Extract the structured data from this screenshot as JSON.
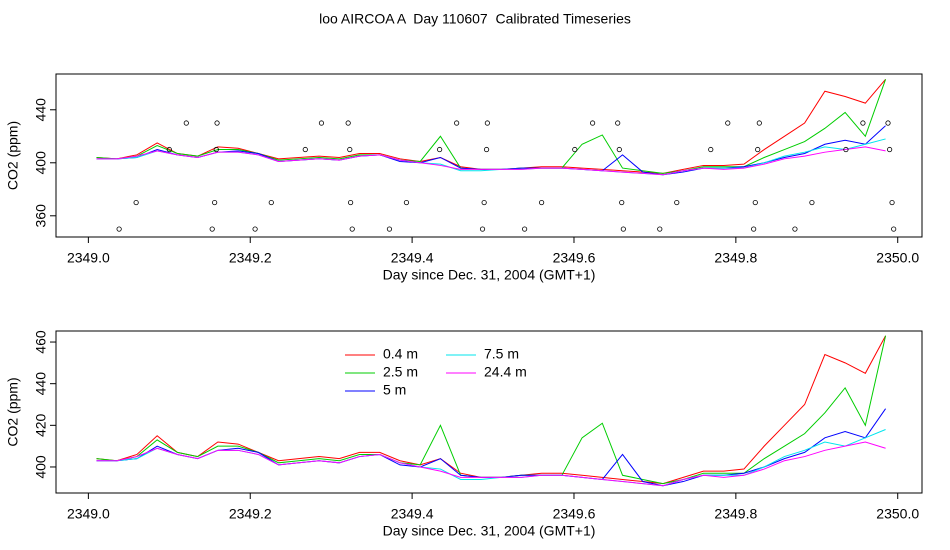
{
  "chart_data": [
    {
      "type": "line",
      "title": "loo AIRCOA A  Day 110607  Calibrated Timeseries",
      "xlabel": "Day since Dec. 31, 2004 (GMT+1)",
      "ylabel": "CO2 (ppm)",
      "xlim": [
        2348.96,
        2350.03
      ],
      "ylim": [
        344,
        467
      ],
      "xticks": [
        {
          "value": 2349,
          "label": "2349.0"
        },
        2349.2,
        2349.4,
        2349.6,
        2349.8,
        {
          "value": 2350,
          "label": "2350.0"
        }
      ],
      "yticks": [
        360,
        400,
        440
      ],
      "x": [
        2349.01,
        2349.035,
        2349.06,
        2349.085,
        2349.11,
        2349.135,
        2349.16,
        2349.185,
        2349.21,
        2349.235,
        2349.26,
        2349.285,
        2349.31,
        2349.335,
        2349.36,
        2349.385,
        2349.41,
        2349.435,
        2349.46,
        2349.485,
        2349.51,
        2349.535,
        2349.56,
        2349.585,
        2349.61,
        2349.635,
        2349.66,
        2349.685,
        2349.71,
        2349.735,
        2349.76,
        2349.785,
        2349.81,
        2349.835,
        2349.86,
        2349.885,
        2349.91,
        2349.935,
        2349.96,
        2349.985
      ],
      "series": [
        {
          "color": "#ff0000",
          "values": [
            404,
            403,
            406,
            415,
            407,
            405,
            412,
            411,
            407,
            403,
            404,
            405,
            404,
            407,
            407,
            403,
            401,
            404,
            397,
            395,
            395,
            396,
            397,
            397,
            396,
            395,
            394,
            393,
            392,
            395,
            398,
            398,
            399,
            410,
            420,
            430,
            454,
            450,
            445,
            463
          ]
        },
        {
          "color": "#00cd00",
          "values": [
            404,
            403,
            405,
            413,
            407,
            405,
            410,
            410,
            407,
            402,
            403,
            404,
            403,
            406,
            406,
            402,
            401,
            420,
            396,
            395,
            395,
            396,
            396,
            396,
            414,
            421,
            396,
            394,
            392,
            394,
            397,
            397,
            397,
            404,
            410,
            416,
            426,
            438,
            420,
            463
          ]
        },
        {
          "color": "#0000ff",
          "values": [
            403,
            403,
            404,
            410,
            406,
            404,
            408,
            409,
            407,
            401,
            402,
            403,
            402,
            405,
            406,
            401,
            400,
            404,
            396,
            395,
            395,
            396,
            396,
            396,
            395,
            394,
            406,
            393,
            391,
            393,
            396,
            396,
            397,
            400,
            404,
            407,
            414,
            417,
            414,
            428
          ]
        },
        {
          "color": "#00e5ee",
          "values": [
            403,
            403,
            404,
            409,
            406,
            404,
            408,
            408,
            406,
            401,
            402,
            403,
            402,
            405,
            406,
            402,
            400,
            399,
            394,
            394,
            395,
            395,
            396,
            396,
            395,
            394,
            393,
            392,
            391,
            394,
            396,
            396,
            396,
            400,
            405,
            408,
            412,
            410,
            414,
            418
          ]
        },
        {
          "color": "#ff00ff",
          "values": [
            403,
            403,
            405,
            409,
            406,
            404,
            408,
            408,
            406,
            401,
            402,
            403,
            402,
            405,
            406,
            402,
            400,
            398,
            395,
            395,
            395,
            395,
            396,
            396,
            395,
            394,
            393,
            392,
            391,
            394,
            396,
            395,
            396,
            399,
            403,
            405,
            408,
            410,
            412,
            409
          ]
        }
      ],
      "points": {
        "color": "#000000",
        "x": [
          2349.038,
          2349.059,
          2349.1,
          2349.121,
          2349.153,
          2349.156,
          2349.158,
          2349.159,
          2349.206,
          2349.226,
          2349.268,
          2349.288,
          2349.321,
          2349.323,
          2349.324,
          2349.326,
          2349.372,
          2349.393,
          2349.434,
          2349.455,
          2349.487,
          2349.489,
          2349.492,
          2349.493,
          2349.539,
          2349.56,
          2349.601,
          2349.623,
          2349.654,
          2349.656,
          2349.659,
          2349.661,
          2349.706,
          2349.727,
          2349.769,
          2349.79,
          2349.822,
          2349.824,
          2349.827,
          2349.829,
          2349.873,
          2349.894,
          2349.936,
          2349.957,
          2349.988,
          2349.99,
          2349.993,
          2349.995
        ],
        "values": [
          350,
          370,
          410,
          430,
          350,
          370,
          410,
          430,
          350,
          370,
          410,
          430,
          430,
          410,
          370,
          350,
          350,
          370,
          410,
          430,
          350,
          370,
          410,
          430,
          350,
          370,
          410,
          430,
          430,
          410,
          370,
          350,
          350,
          370,
          410,
          430,
          350,
          370,
          410,
          430,
          350,
          370,
          410,
          430,
          430,
          410,
          370,
          350
        ]
      }
    },
    {
      "type": "line",
      "xlabel": "Day since Dec. 31, 2004 (GMT+1)",
      "ylabel": "CO2 (ppm)",
      "xlim": [
        2348.96,
        2350.03
      ],
      "ylim": [
        387.5,
        465.3
      ],
      "xticks": [
        {
          "value": 2349,
          "label": "2349.0"
        },
        2349.2,
        2349.4,
        2349.6,
        2349.8,
        {
          "value": 2350,
          "label": "2350.0"
        }
      ],
      "yticks": [
        400,
        420,
        440,
        460
      ],
      "legend_columns": 2,
      "x": [
        2349.01,
        2349.035,
        2349.06,
        2349.085,
        2349.11,
        2349.135,
        2349.16,
        2349.185,
        2349.21,
        2349.235,
        2349.26,
        2349.285,
        2349.31,
        2349.335,
        2349.36,
        2349.385,
        2349.41,
        2349.435,
        2349.46,
        2349.485,
        2349.51,
        2349.535,
        2349.56,
        2349.585,
        2349.61,
        2349.635,
        2349.66,
        2349.685,
        2349.71,
        2349.735,
        2349.76,
        2349.785,
        2349.81,
        2349.835,
        2349.86,
        2349.885,
        2349.91,
        2349.935,
        2349.96,
        2349.985
      ],
      "series": [
        {
          "name": "0.4 m",
          "color": "#ff0000",
          "values": [
            404,
            403,
            406,
            415,
            407,
            405,
            412,
            411,
            407,
            403,
            404,
            405,
            404,
            407,
            407,
            403,
            401,
            404,
            397,
            395,
            395,
            396,
            397,
            397,
            396,
            395,
            394,
            393,
            392,
            395,
            398,
            398,
            399,
            410,
            420,
            430,
            454,
            450,
            445,
            463
          ]
        },
        {
          "name": "2.5 m",
          "color": "#00cd00",
          "values": [
            404,
            403,
            405,
            413,
            407,
            405,
            410,
            410,
            407,
            402,
            403,
            404,
            403,
            406,
            406,
            402,
            401,
            420,
            396,
            395,
            395,
            396,
            396,
            396,
            414,
            421,
            396,
            394,
            392,
            394,
            397,
            397,
            397,
            404,
            410,
            416,
            426,
            438,
            420,
            463
          ]
        },
        {
          "name": "5 m",
          "color": "#0000ff",
          "values": [
            403,
            403,
            404,
            410,
            406,
            404,
            408,
            409,
            407,
            401,
            402,
            403,
            402,
            405,
            406,
            401,
            400,
            404,
            396,
            395,
            395,
            396,
            396,
            396,
            395,
            394,
            406,
            393,
            391,
            393,
            396,
            396,
            397,
            400,
            404,
            407,
            414,
            417,
            414,
            428
          ]
        },
        {
          "name": "7.5 m",
          "color": "#00e5ee",
          "values": [
            403,
            403,
            404,
            409,
            406,
            404,
            408,
            408,
            406,
            401,
            402,
            403,
            402,
            405,
            406,
            402,
            400,
            399,
            394,
            394,
            395,
            395,
            396,
            396,
            395,
            394,
            393,
            392,
            391,
            394,
            396,
            396,
            396,
            400,
            405,
            408,
            412,
            410,
            414,
            418
          ]
        },
        {
          "name": "24.4 m",
          "color": "#ff00ff",
          "values": [
            403,
            403,
            405,
            409,
            406,
            404,
            408,
            408,
            406,
            401,
            402,
            403,
            402,
            405,
            406,
            402,
            400,
            398,
            395,
            395,
            395,
            395,
            396,
            396,
            395,
            394,
            393,
            392,
            391,
            394,
            396,
            395,
            396,
            399,
            403,
            405,
            408,
            410,
            412,
            409
          ]
        }
      ]
    }
  ]
}
